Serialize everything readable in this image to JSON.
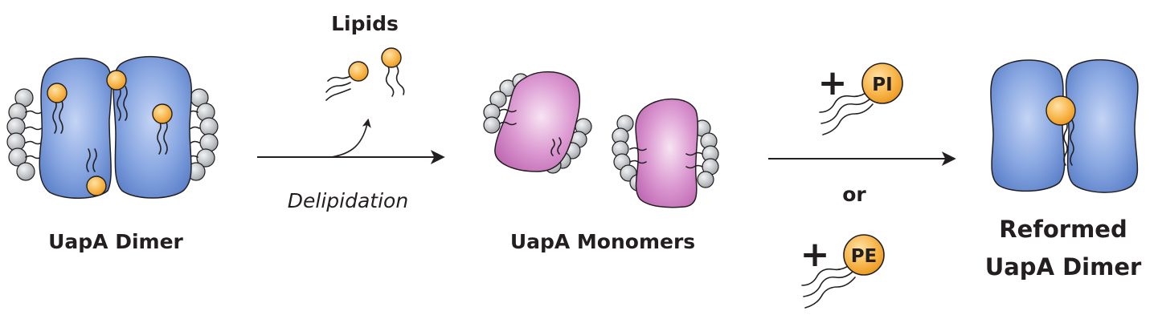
{
  "labels": {
    "lipids": "Lipids",
    "dimer": "UapA Dimer",
    "delipidation": "Delipidation",
    "monomers": "UapA Monomers",
    "or": "or",
    "reformed_line1": "Reformed",
    "reformed_line2": "UapA Dimer"
  },
  "additions": [
    {
      "sign": "+",
      "lipid": "PI"
    },
    {
      "sign": "+",
      "lipid": "PE"
    }
  ],
  "colors": {
    "dimer_blue": "#6b8fd3",
    "dimer_blue_light": "#a9c0ee",
    "monomer_pink": "#cf7fc3",
    "monomer_pink_light": "#f4dbef",
    "lipid_orange": "#f5a623",
    "lipid_orange_light": "#fdd589",
    "bead_gray": "#b9bcc0",
    "ink": "#231f20"
  }
}
